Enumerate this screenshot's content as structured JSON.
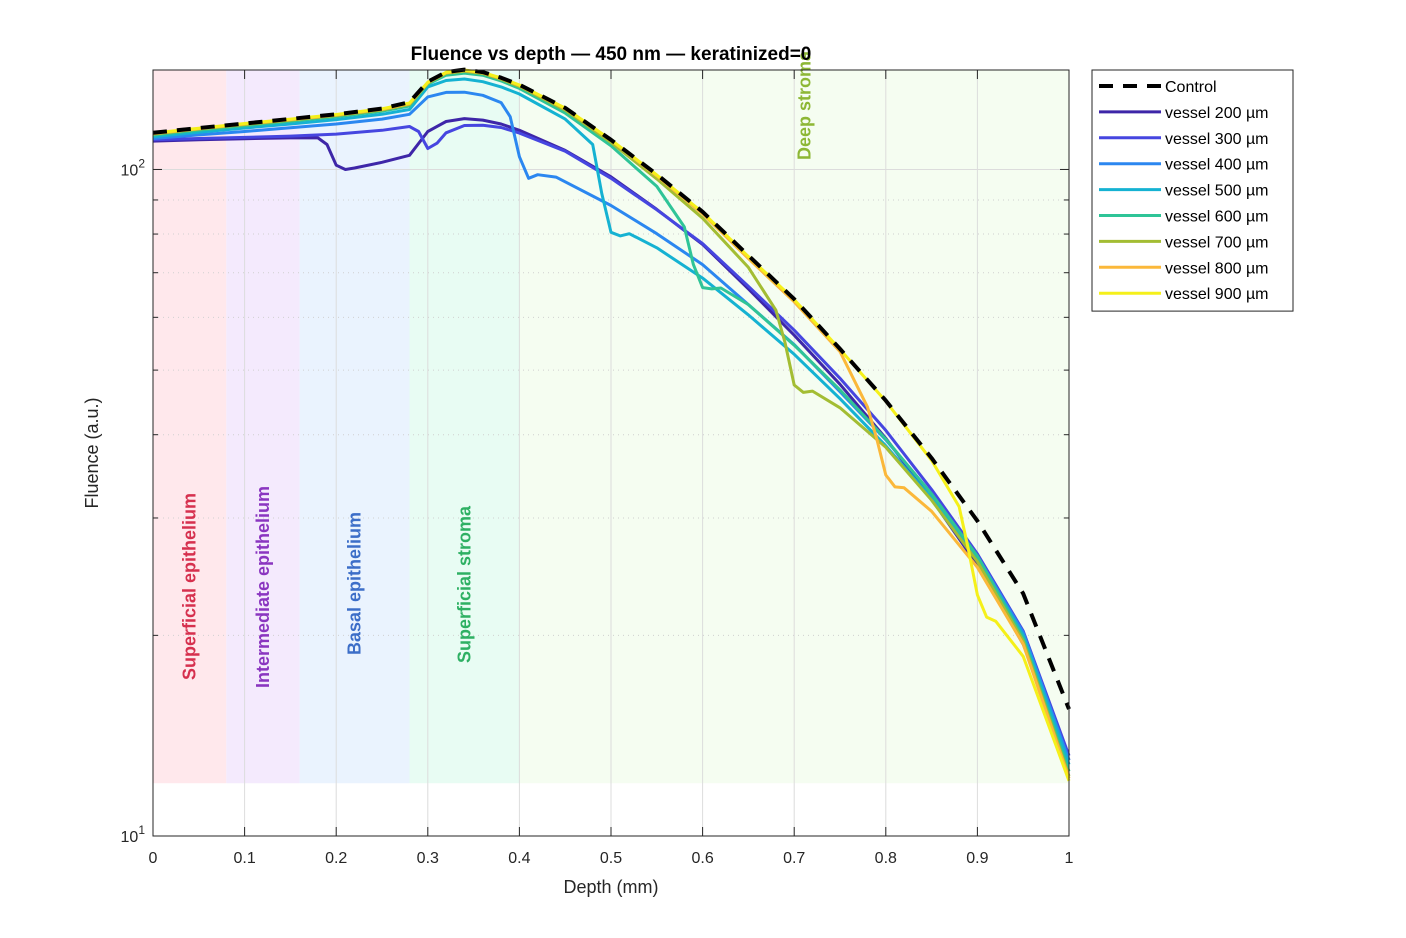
{
  "chart_data": {
    "type": "line",
    "title": "Fluence vs depth — 450 nm — keratinized=0",
    "xlabel": "Depth (mm)",
    "ylabel": "Fluence (a.u.)",
    "xlim": [
      0,
      1
    ],
    "ylim": [
      10,
      141
    ],
    "yscale": "log",
    "x_ticks": [
      0,
      0.1,
      0.2,
      0.3,
      0.4,
      0.5,
      0.6,
      0.7,
      0.8,
      0.9,
      1
    ],
    "x_tick_labels": [
      "0",
      "0.1",
      "0.2",
      "0.3",
      "0.4",
      "0.5",
      "0.6",
      "0.7",
      "0.8",
      "0.9",
      "1"
    ],
    "y_ticks": [
      {
        "value": 10,
        "base": "10",
        "exp": "1"
      },
      {
        "value": 100,
        "base": "10",
        "exp": "2"
      }
    ],
    "grid": true,
    "legend_position": "outside-top-right",
    "bands": [
      {
        "label": "Superficial epithelium",
        "x0": 0.0,
        "x1": 0.08,
        "fill": "#ffe8ec",
        "text_color": "#d6304e"
      },
      {
        "label": "Intermediate epithelium",
        "x0": 0.08,
        "x1": 0.16,
        "fill": "#f4eafd",
        "text_color": "#8a35c0"
      },
      {
        "label": "Basal epithelium",
        "x0": 0.16,
        "x1": 0.28,
        "fill": "#eaf3fe",
        "text_color": "#3c6ec8"
      },
      {
        "label": "Superficial stroma",
        "x0": 0.28,
        "x1": 0.4,
        "fill": "#e8fcf3",
        "text_color": "#2eb063"
      },
      {
        "label": "Deep stroma",
        "x0": 0.4,
        "x1": 1.0,
        "fill": "#f5fdf1",
        "text_color": "#8db735"
      }
    ],
    "band_ymin": 12.0,
    "series": [
      {
        "name": "Control",
        "color": "#000000",
        "dashed": true,
        "x": [
          0,
          0.05,
          0.1,
          0.15,
          0.2,
          0.25,
          0.28,
          0.3,
          0.32,
          0.34,
          0.36,
          0.38,
          0.4,
          0.45,
          0.5,
          0.55,
          0.6,
          0.65,
          0.7,
          0.75,
          0.8,
          0.85,
          0.9,
          0.95,
          1.0
        ],
        "y": [
          113.5,
          115.4,
          117.2,
          119.1,
          121.0,
          123.4,
          126.2,
          135.4,
          140.0,
          141.2,
          140.0,
          137.3,
          134.0,
          123.7,
          110.8,
          98.3,
          86.4,
          74.3,
          63.9,
          53.8,
          45.0,
          36.9,
          29.7,
          23.1,
          15.5
        ]
      },
      {
        "name": "vessel 200 µm",
        "color": "#3e26a8",
        "x": [
          0,
          0.05,
          0.1,
          0.15,
          0.18,
          0.19,
          0.2,
          0.21,
          0.22,
          0.25,
          0.28,
          0.3,
          0.32,
          0.34,
          0.36,
          0.38,
          0.4,
          0.45,
          0.5,
          0.55,
          0.6,
          0.65,
          0.7,
          0.75,
          0.8,
          0.85,
          0.9,
          0.95,
          1.0
        ],
        "y": [
          110.3,
          110.8,
          111.2,
          111.5,
          111.5,
          109.0,
          101.5,
          100.0,
          100.5,
          102.5,
          105.0,
          114.0,
          118.0,
          119.2,
          118.6,
          117.0,
          114.5,
          106.8,
          97.5,
          87.1,
          77.2,
          66.2,
          56.4,
          47.6,
          39.5,
          32.0,
          25.5,
          19.4,
          13.0
        ]
      },
      {
        "name": "vessel 300 µm",
        "color": "#4646e0",
        "x": [
          0,
          0.05,
          0.1,
          0.15,
          0.2,
          0.25,
          0.28,
          0.29,
          0.3,
          0.31,
          0.32,
          0.34,
          0.36,
          0.38,
          0.4,
          0.45,
          0.5,
          0.55,
          0.6,
          0.65,
          0.7,
          0.75,
          0.8,
          0.85,
          0.9,
          0.95,
          1.0
        ],
        "y": [
          110.8,
          111.3,
          111.7,
          112.2,
          113.0,
          114.5,
          116.0,
          114.0,
          107.5,
          109.5,
          113.5,
          116.4,
          116.5,
          115.6,
          113.4,
          106.5,
          97.0,
          87.0,
          77.4,
          66.8,
          57.4,
          48.6,
          40.6,
          33.1,
          26.5,
          20.3,
          13.2
        ]
      },
      {
        "name": "vessel 400 µm",
        "color": "#2b87f0",
        "x": [
          0,
          0.05,
          0.1,
          0.15,
          0.2,
          0.25,
          0.28,
          0.3,
          0.32,
          0.34,
          0.36,
          0.38,
          0.39,
          0.4,
          0.41,
          0.42,
          0.44,
          0.5,
          0.55,
          0.6,
          0.65,
          0.7,
          0.75,
          0.8,
          0.85,
          0.9,
          0.95,
          1.0
        ],
        "y": [
          111.3,
          112.7,
          114.0,
          115.5,
          117.0,
          119.0,
          121.0,
          128.5,
          130.5,
          130.6,
          129.2,
          126.0,
          120.0,
          104.5,
          97.0,
          98.2,
          97.4,
          88.3,
          80.1,
          72.0,
          62.7,
          54.6,
          46.4,
          39.3,
          32.6,
          26.3,
          20.2,
          13.0
        ]
      },
      {
        "name": "vessel 500 µm",
        "color": "#15b2d2",
        "x": [
          0,
          0.05,
          0.1,
          0.15,
          0.2,
          0.25,
          0.28,
          0.3,
          0.32,
          0.34,
          0.36,
          0.38,
          0.4,
          0.45,
          0.48,
          0.49,
          0.5,
          0.51,
          0.52,
          0.55,
          0.6,
          0.65,
          0.7,
          0.75,
          0.8,
          0.85,
          0.9,
          0.95,
          1.0
        ],
        "y": [
          112.0,
          113.7,
          115.4,
          117.0,
          118.8,
          121.0,
          123.0,
          133.0,
          136.0,
          136.7,
          135.4,
          133.0,
          129.8,
          119.0,
          109.0,
          92.0,
          80.5,
          79.5,
          80.1,
          76.3,
          68.7,
          60.5,
          52.8,
          45.3,
          38.5,
          32.1,
          26.1,
          20.0,
          12.8
        ]
      },
      {
        "name": "vessel 600 µm",
        "color": "#2fc497",
        "x": [
          0,
          0.05,
          0.1,
          0.15,
          0.2,
          0.25,
          0.28,
          0.3,
          0.32,
          0.34,
          0.36,
          0.38,
          0.4,
          0.45,
          0.5,
          0.55,
          0.58,
          0.59,
          0.6,
          0.61,
          0.62,
          0.65,
          0.7,
          0.75,
          0.8,
          0.85,
          0.9,
          0.95,
          1.0
        ],
        "y": [
          112.6,
          114.5,
          116.3,
          118.1,
          120.0,
          122.3,
          124.5,
          134.3,
          138.5,
          139.5,
          138.5,
          135.8,
          132.3,
          121.5,
          108.5,
          94.3,
          82.0,
          72.0,
          66.5,
          66.2,
          66.4,
          62.7,
          54.5,
          46.7,
          39.4,
          32.6,
          26.3,
          19.8,
          12.5
        ]
      },
      {
        "name": "vessel 700 µm",
        "color": "#a3bd33",
        "x": [
          0,
          0.05,
          0.1,
          0.15,
          0.2,
          0.25,
          0.28,
          0.3,
          0.32,
          0.34,
          0.36,
          0.38,
          0.4,
          0.45,
          0.5,
          0.55,
          0.6,
          0.65,
          0.68,
          0.69,
          0.7,
          0.71,
          0.72,
          0.75,
          0.8,
          0.85,
          0.9,
          0.95,
          1.0
        ],
        "y": [
          113.0,
          115.0,
          116.8,
          118.6,
          120.5,
          122.8,
          125.2,
          134.8,
          139.4,
          140.4,
          139.3,
          136.6,
          133.3,
          122.8,
          109.8,
          96.8,
          84.5,
          71.3,
          61.5,
          55.0,
          47.5,
          46.3,
          46.5,
          43.9,
          38.3,
          31.9,
          25.8,
          19.6,
          12.3
        ]
      },
      {
        "name": "vessel 800 µm",
        "color": "#fbb83a",
        "x": [
          0,
          0.05,
          0.1,
          0.15,
          0.2,
          0.25,
          0.28,
          0.3,
          0.32,
          0.34,
          0.36,
          0.38,
          0.4,
          0.45,
          0.5,
          0.55,
          0.6,
          0.65,
          0.7,
          0.75,
          0.78,
          0.79,
          0.8,
          0.81,
          0.82,
          0.85,
          0.9,
          0.95,
          1.0
        ],
        "y": [
          113.2,
          115.1,
          117.0,
          118.8,
          120.7,
          123.1,
          125.5,
          135.0,
          139.7,
          140.8,
          139.6,
          137.0,
          133.7,
          123.4,
          110.6,
          97.8,
          85.8,
          73.5,
          63.3,
          53.3,
          44.0,
          39.5,
          34.8,
          33.4,
          33.3,
          30.7,
          25.3,
          19.4,
          12.2
        ]
      },
      {
        "name": "vessel 900 µm",
        "color": "#f5f01a",
        "x": [
          0,
          0.05,
          0.1,
          0.15,
          0.2,
          0.25,
          0.28,
          0.3,
          0.32,
          0.34,
          0.36,
          0.38,
          0.4,
          0.45,
          0.5,
          0.55,
          0.6,
          0.65,
          0.7,
          0.75,
          0.8,
          0.85,
          0.88,
          0.89,
          0.9,
          0.91,
          0.92,
          0.95,
          1.0
        ],
        "y": [
          113.4,
          115.3,
          117.2,
          119.0,
          120.9,
          123.3,
          125.8,
          135.2,
          139.9,
          141.0,
          139.8,
          137.2,
          133.9,
          123.6,
          110.8,
          98.1,
          86.2,
          74.0,
          63.8,
          53.7,
          44.9,
          36.6,
          31.2,
          27.0,
          23.0,
          21.3,
          21.0,
          18.6,
          12.1
        ]
      }
    ]
  }
}
